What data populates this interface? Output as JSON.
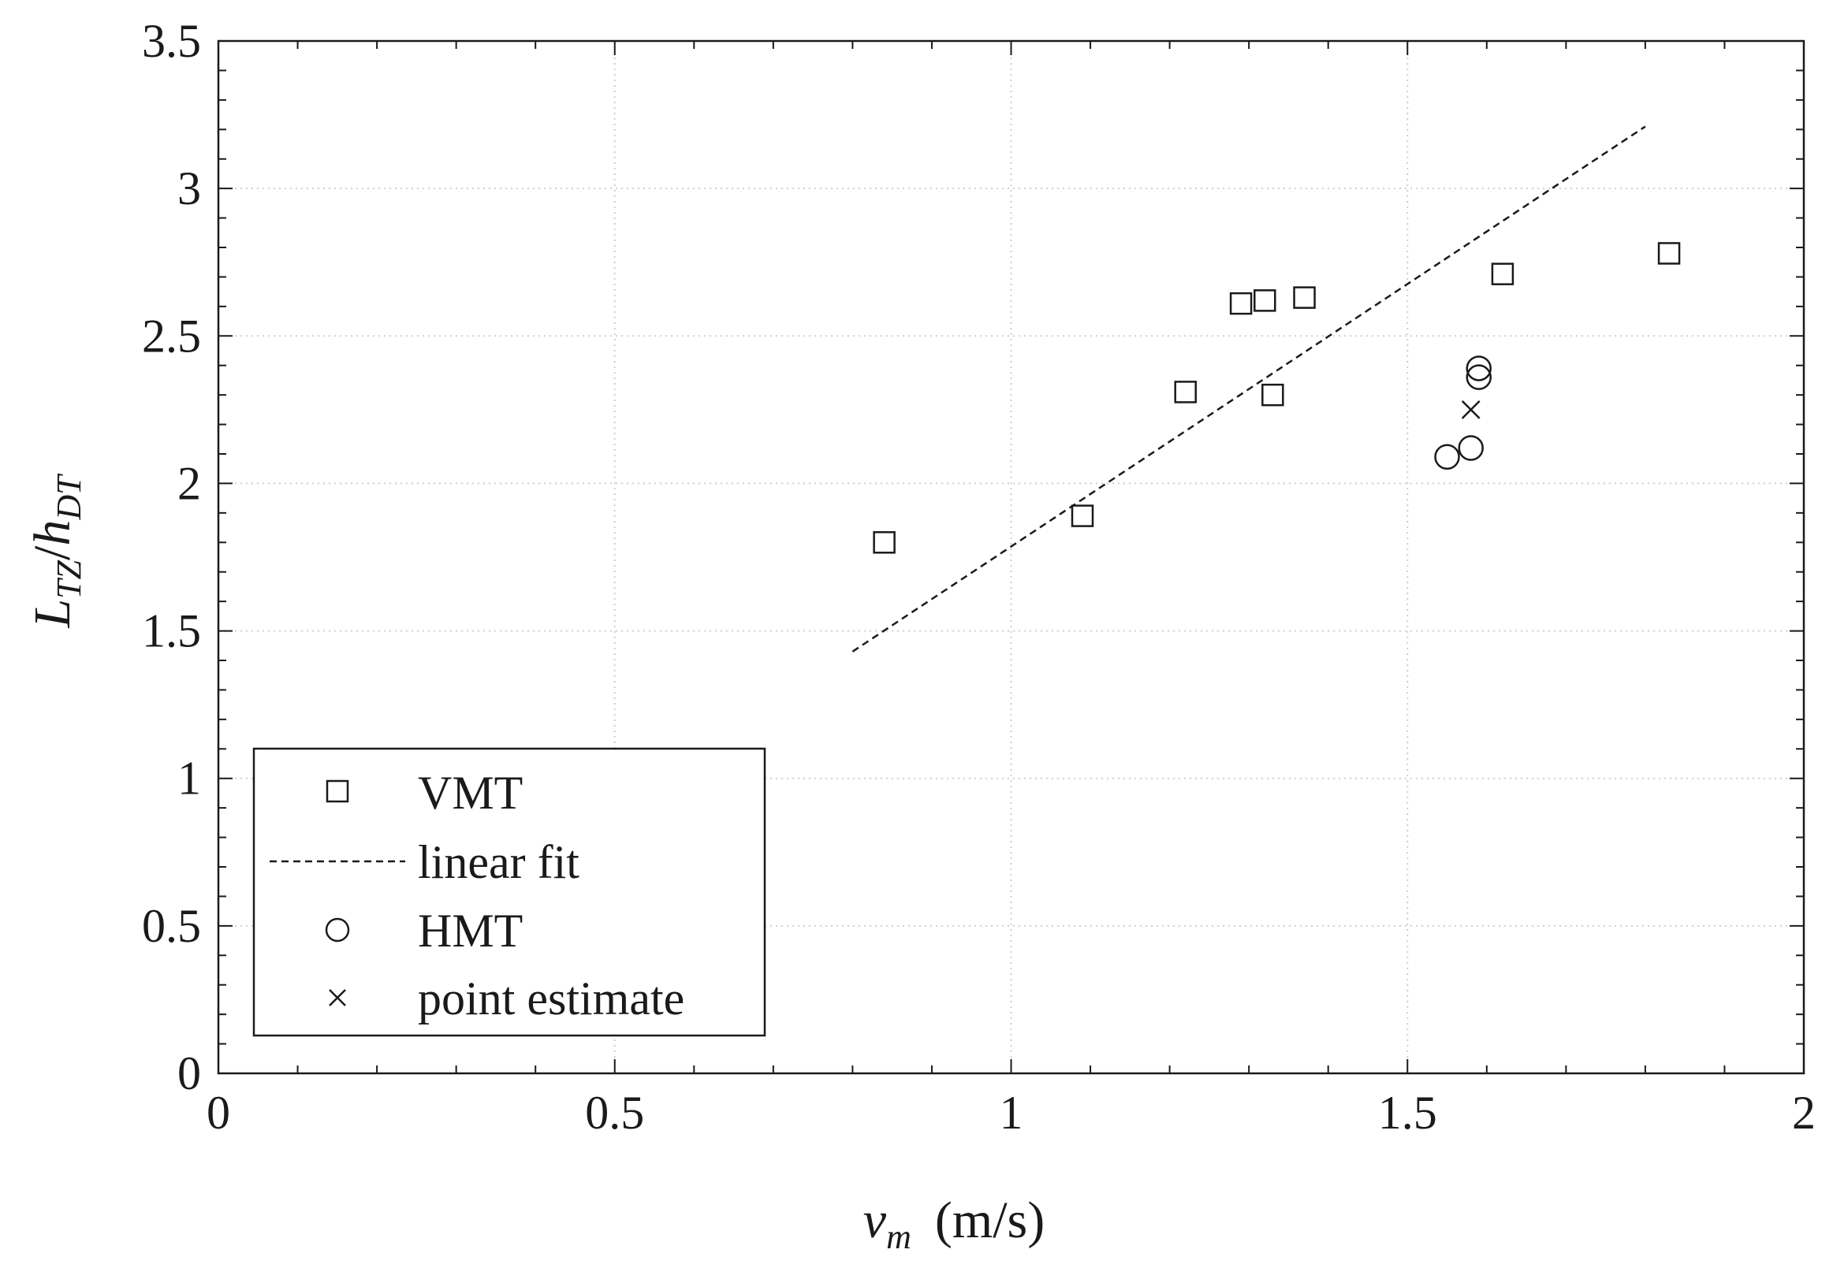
{
  "chart_data": {
    "type": "scatter",
    "xlabel": "v_m (m/s)",
    "xlabel_parts": {
      "symbol": "v",
      "subscript": "m",
      "units": "(m/s)"
    },
    "ylabel": "L_TZ/h_DT",
    "ylabel_parts": {
      "numerator": "L",
      "numerator_sub": "TZ",
      "slash": "/",
      "denominator": "h",
      "denominator_sub": "DT"
    },
    "xlim": [
      0,
      2
    ],
    "ylim": [
      0,
      3.5
    ],
    "grid": true,
    "xticks": [
      0,
      0.5,
      1,
      1.5,
      2
    ],
    "xtick_labels": [
      "0",
      "0.5",
      "1",
      "1.5",
      "2"
    ],
    "yticks": [
      0,
      0.5,
      1,
      1.5,
      2,
      2.5,
      3,
      3.5
    ],
    "ytick_labels": [
      "0",
      "0.5",
      "1",
      "1.5",
      "2",
      "2.5",
      "3",
      "3.5"
    ],
    "legend_position": "bottom-left",
    "series": [
      {
        "name": "VMT",
        "marker": "square",
        "points": [
          [
            0.84,
            1.8
          ],
          [
            1.09,
            1.89
          ],
          [
            1.22,
            2.31
          ],
          [
            1.29,
            2.61
          ],
          [
            1.32,
            2.62
          ],
          [
            1.33,
            2.3
          ],
          [
            1.37,
            2.63
          ],
          [
            1.62,
            2.71
          ],
          [
            1.83,
            2.78
          ]
        ]
      },
      {
        "name": "linear fit",
        "marker": "dashed-line",
        "points": [
          [
            0.8,
            1.43
          ],
          [
            1.8,
            3.21
          ]
        ]
      },
      {
        "name": "HMT",
        "marker": "circle",
        "points": [
          [
            1.55,
            2.09
          ],
          [
            1.58,
            2.12
          ],
          [
            1.59,
            2.36
          ],
          [
            1.59,
            2.39
          ]
        ]
      },
      {
        "name": "point estimate",
        "marker": "x",
        "points": [
          [
            1.58,
            2.25
          ]
        ]
      }
    ],
    "colors": {
      "ink": "#1a1a1a",
      "grid": "#cfcfcf",
      "background": "#ffffff"
    }
  }
}
